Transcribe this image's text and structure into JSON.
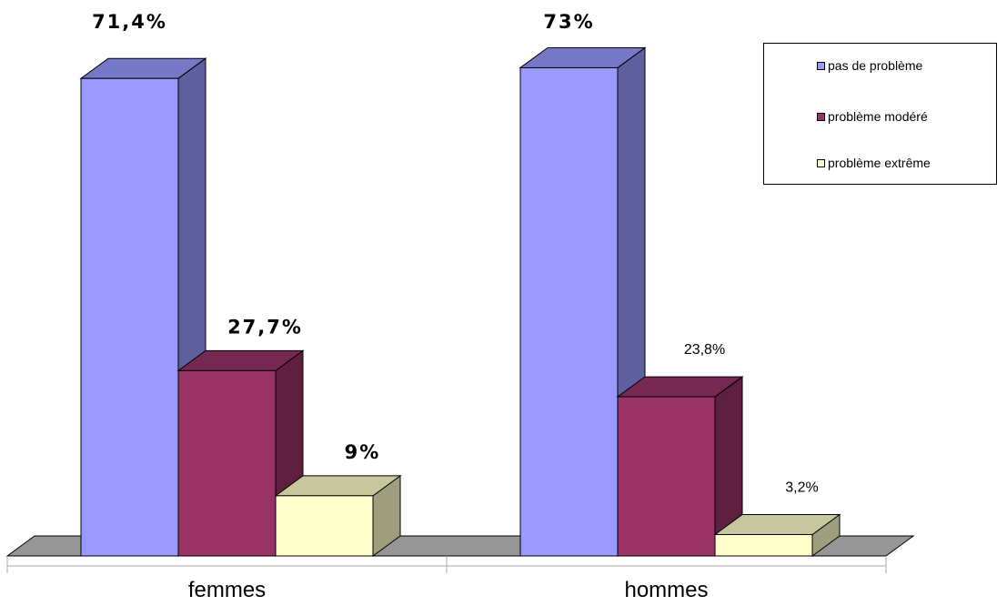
{
  "chart_data": {
    "type": "bar",
    "categories": [
      "femmes",
      "hommes"
    ],
    "series": [
      {
        "name": "pas de problème",
        "values": [
          71.4,
          73
        ],
        "labels": [
          "71,4%",
          "73%"
        ],
        "color": "#9999ff"
      },
      {
        "name": "problème modéré",
        "values": [
          27.7,
          23.8
        ],
        "labels": [
          "27,7%",
          "23,8%"
        ],
        "color": "#993366"
      },
      {
        "name": "problème extrême",
        "values": [
          9,
          3.2
        ],
        "labels": [
          "9%",
          "3,2%"
        ],
        "color": "#ffffcc"
      }
    ],
    "ylim": [
      0,
      80
    ],
    "grid": false,
    "legend_position": "top-right",
    "three_d": true
  }
}
